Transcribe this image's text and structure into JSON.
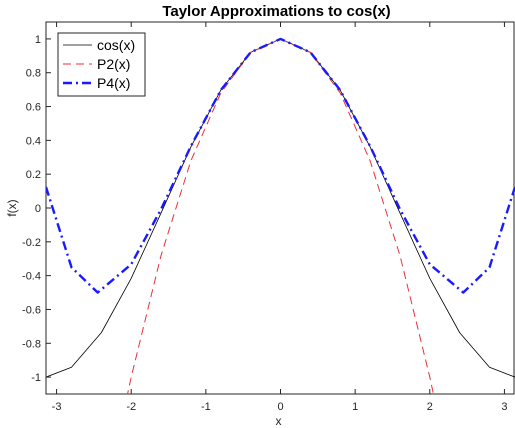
{
  "chart_data": {
    "type": "line",
    "title": "Taylor Approximations to cos(x)",
    "xlabel": "x",
    "ylabel": "f(x)",
    "xlim": [
      -3.14159,
      3.14159
    ],
    "ylim": [
      -1.1,
      1.1
    ],
    "xticks": [
      -3,
      -2,
      -1,
      0,
      1,
      2,
      3
    ],
    "xtick_labels": [
      "-3",
      "-2",
      "-1",
      "0",
      "1",
      "2",
      "3"
    ],
    "yticks": [
      -1,
      -0.8,
      -0.6,
      -0.4,
      -0.2,
      0,
      0.2,
      0.4,
      0.6,
      0.8,
      1
    ],
    "ytick_labels": [
      "-1",
      "-0.8",
      "-0.6",
      "-0.4",
      "-0.2",
      "0",
      "0.2",
      "0.4",
      "0.6",
      "0.8",
      "1"
    ],
    "grid": false,
    "legend_position": "top-left",
    "series": [
      {
        "name": "cos(x)",
        "color": "#000000",
        "style": "solid",
        "x": [
          -3.14159,
          -2.8,
          -2.4,
          -2.0,
          -1.6,
          -1.2,
          -0.8,
          -0.4,
          0,
          0.4,
          0.8,
          1.2,
          1.6,
          2.0,
          2.4,
          2.8,
          3.14159
        ],
        "y": [
          -1.0,
          -0.942,
          -0.737,
          -0.416,
          -0.029,
          0.362,
          0.697,
          0.921,
          1.0,
          0.921,
          0.697,
          0.362,
          -0.029,
          -0.416,
          -0.737,
          -0.942,
          -1.0
        ]
      },
      {
        "name": "P2(x)",
        "color": "#e8303a",
        "style": "dashed",
        "x": [
          -2.0976,
          -2.0,
          -1.6,
          -1.2,
          -0.8,
          -0.4,
          0,
          0.4,
          0.8,
          1.2,
          1.6,
          2.0,
          2.0976
        ],
        "y": [
          -1.2,
          -1.0,
          -0.28,
          0.28,
          0.68,
          0.92,
          1.0,
          0.92,
          0.68,
          0.28,
          -0.28,
          -1.0,
          -1.2
        ]
      },
      {
        "name": "P4(x)",
        "color": "#1a1aff",
        "style": "dashdot",
        "x": [
          -3.14159,
          -2.8,
          -2.449,
          -2.0,
          -1.6,
          -1.2,
          -0.8,
          -0.4,
          0,
          0.4,
          0.8,
          1.2,
          1.6,
          2.0,
          2.449,
          2.8,
          3.14159
        ],
        "y": [
          0.124,
          -0.351,
          -0.5,
          -0.333,
          -0.007,
          0.366,
          0.697,
          0.921,
          1.0,
          0.921,
          0.697,
          0.366,
          -0.007,
          -0.333,
          -0.5,
          -0.351,
          0.124
        ]
      }
    ]
  }
}
